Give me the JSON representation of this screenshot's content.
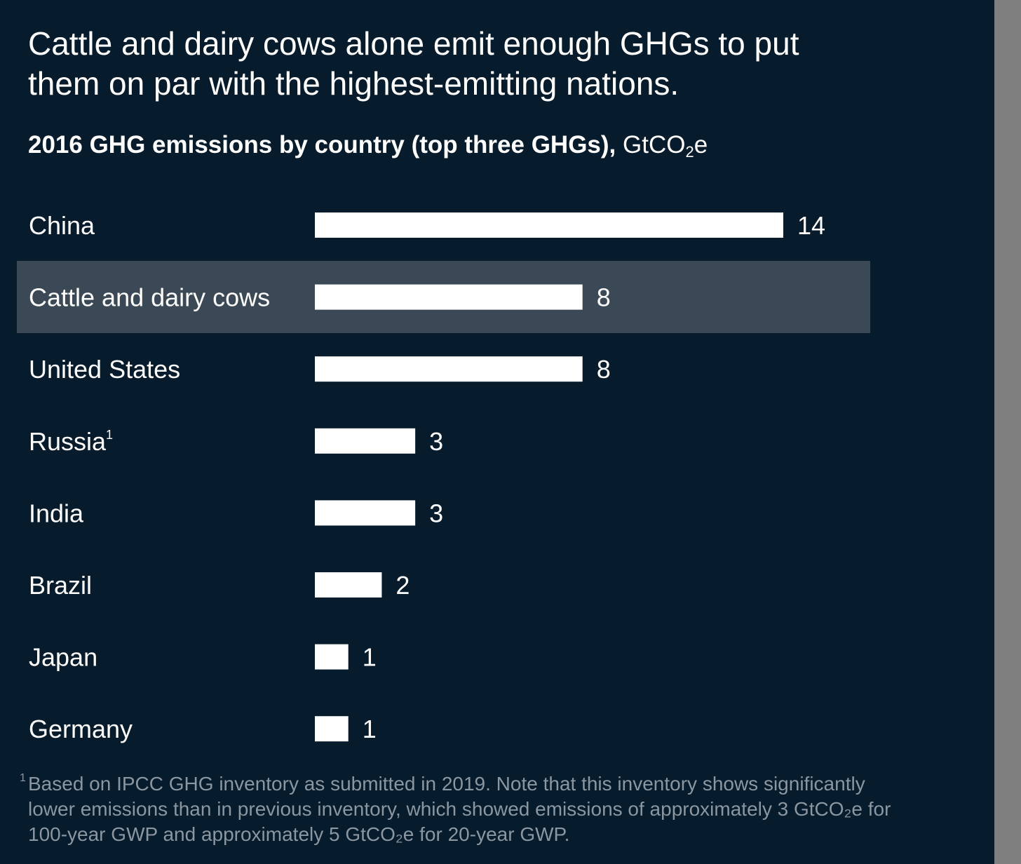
{
  "headline": "Cattle and dairy cows alone emit enough GHGs to put them on par with the highest-emitting nations.",
  "subtitle": {
    "bold": "2016 GHG emissions by country (top three GHGs),",
    "unit_pre": "GtCO",
    "unit_sub": "2",
    "unit_post": "e"
  },
  "footnote": {
    "mark": "1",
    "text": "Based on IPCC GHG inventory as submitted in 2019. Note that this inventory shows significantly lower emissions than in previous inventory, which showed emissions of approximately 3 GtCO₂e for 100-year GWP and approximately 5 GtCO₂e for 20-year GWP."
  },
  "colors": {
    "background": "#061b2c",
    "bar": "#ffffff",
    "highlight": "#3a4955",
    "text": "#ffffff",
    "footnote_text": "#8a96a0"
  },
  "chart_data": {
    "type": "bar",
    "orientation": "horizontal",
    "title": "2016 GHG emissions by country (top three GHGs), GtCO₂e",
    "categories": [
      "China",
      "Cattle and dairy cows",
      "United States",
      "Russia",
      "India",
      "Brazil",
      "Japan",
      "Germany"
    ],
    "category_marks": [
      "",
      "",
      "",
      "1",
      "",
      "",
      "",
      ""
    ],
    "values": [
      14,
      8,
      8,
      3,
      3,
      2,
      1,
      1
    ],
    "value_labels": [
      "14",
      "8",
      "8",
      "3",
      "3",
      "2",
      "1",
      "1"
    ],
    "highlighted": [
      "Cattle and dairy cows"
    ],
    "xlabel": "",
    "ylabel": "",
    "xlim": [
      0,
      14
    ],
    "grid": false,
    "legend": "none"
  }
}
